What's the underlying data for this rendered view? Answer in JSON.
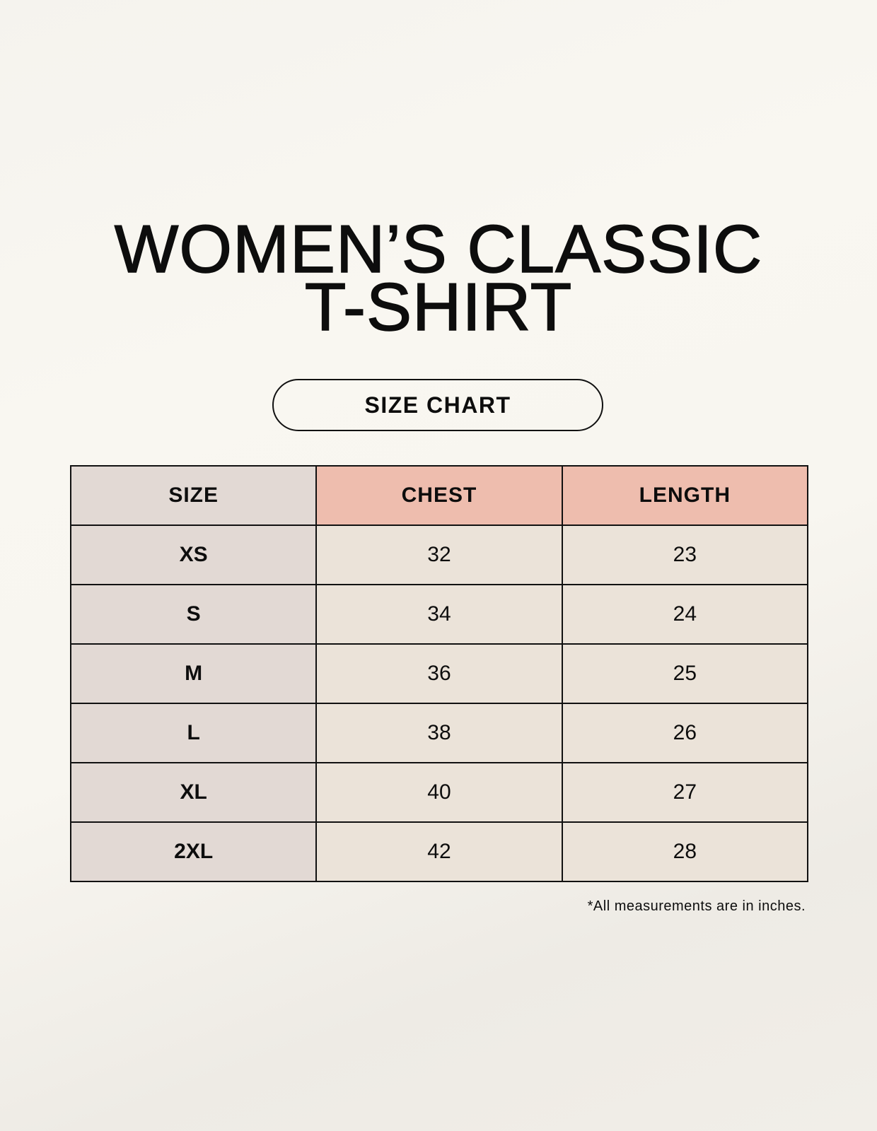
{
  "title": {
    "line1": "WOMEN’S CLASSIC",
    "line2": "T-SHIRT"
  },
  "subtitle": "SIZE CHART",
  "table": {
    "headers": [
      "SIZE",
      "CHEST",
      "LENGTH"
    ],
    "rows": [
      [
        "XS",
        "32",
        "23"
      ],
      [
        "S",
        "34",
        "24"
      ],
      [
        "M",
        "36",
        "25"
      ],
      [
        "L",
        "38",
        "26"
      ],
      [
        "XL",
        "40",
        "27"
      ],
      [
        "2XL",
        "42",
        "28"
      ]
    ]
  },
  "footnote": "*All measurements are in inches.",
  "colors": {
    "size_column": "#e2d9d4",
    "header_accent": "#eebdae",
    "cell": "#ebe3d9"
  }
}
